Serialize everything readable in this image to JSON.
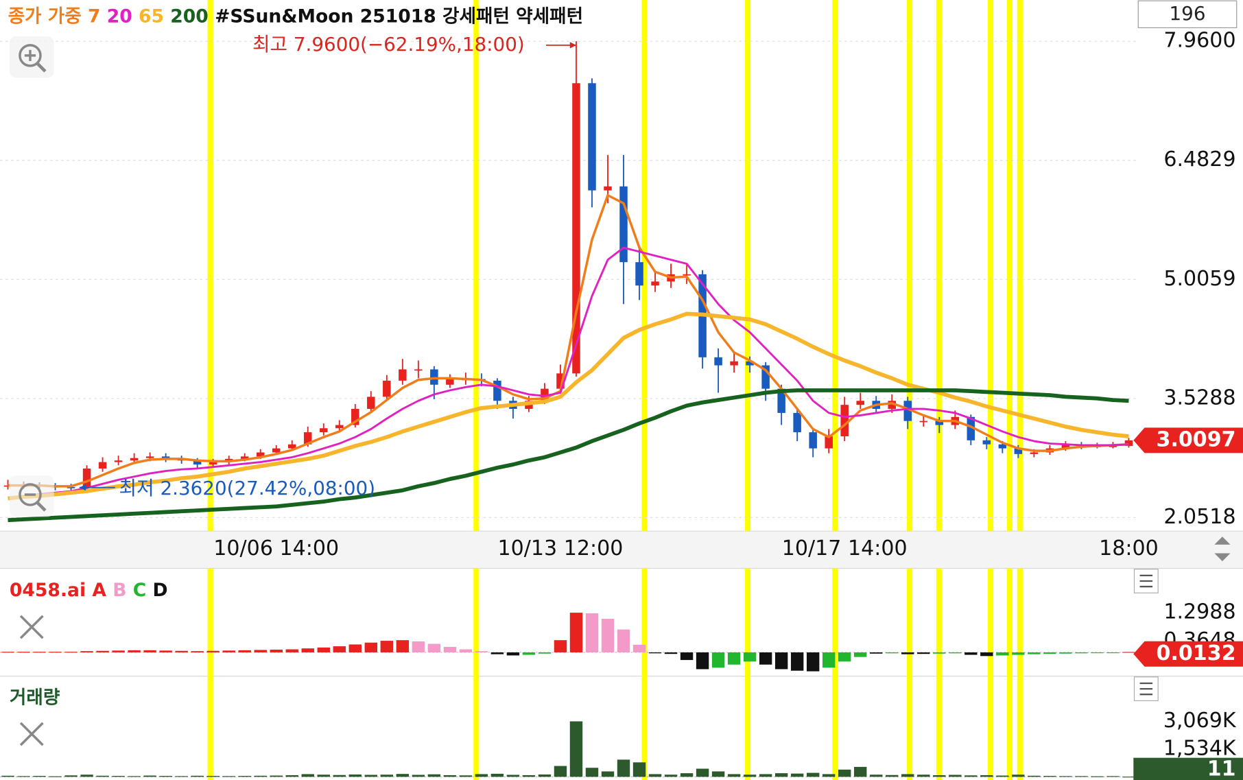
{
  "counter": 196,
  "chart_data": [
    {
      "type": "candlestick",
      "ma_label": "종가 가중",
      "title": "#SSun&Moon 251018",
      "patterns": [
        "강세패턴",
        "약세패턴"
      ],
      "high_annotation": "최고 7.9600(−62.19%,18:00)",
      "low_annotation": "최저 2.3620(27.42%,08:00)",
      "categories": [
        null,
        null,
        null,
        null,
        null,
        null,
        null,
        null,
        null,
        null,
        null,
        null,
        null,
        null,
        null,
        null,
        null,
        "10/06 14:00",
        null,
        null,
        null,
        null,
        null,
        null,
        null,
        null,
        null,
        null,
        null,
        null,
        null,
        null,
        null,
        null,
        null,
        "10/13 12:00",
        null,
        null,
        null,
        null,
        null,
        null,
        null,
        null,
        null,
        null,
        null,
        null,
        null,
        null,
        null,
        null,
        null,
        "10/17 14:00",
        null,
        null,
        null,
        null,
        null,
        null,
        null,
        null,
        null,
        null,
        null,
        null,
        null,
        null,
        null,
        null,
        null,
        "18:00"
      ],
      "open": [
        2.45,
        2.45,
        2.45,
        2.44,
        2.43,
        2.42,
        2.66,
        2.74,
        2.76,
        2.79,
        2.81,
        2.78,
        2.76,
        2.71,
        2.74,
        2.78,
        2.81,
        2.86,
        2.91,
        2.96,
        3.11,
        3.16,
        3.2,
        3.4,
        3.55,
        3.75,
        3.89,
        3.89,
        3.7,
        3.77,
        3.77,
        3.75,
        3.5,
        3.4,
        3.5,
        3.65,
        3.84,
        7.44,
        6.11,
        6.16,
        5.22,
        4.93,
        4.98,
        5.07,
        5.07,
        4.04,
        3.94,
        3.99,
        3.94,
        3.65,
        3.35,
        3.11,
        2.91,
        3.06,
        3.45,
        3.5,
        3.4,
        3.5,
        3.25,
        3.25,
        3.2,
        3.3,
        3.01,
        2.96,
        2.91,
        2.84,
        2.86,
        2.91,
        2.96,
        2.94,
        2.94,
        2.94
      ],
      "high": [
        2.52,
        2.5,
        2.49,
        2.48,
        2.47,
        2.7,
        2.8,
        2.82,
        2.85,
        2.86,
        2.85,
        2.82,
        2.79,
        2.78,
        2.82,
        2.85,
        2.9,
        2.95,
        3.01,
        3.18,
        3.22,
        3.26,
        3.46,
        3.62,
        3.82,
        4.02,
        4.0,
        3.93,
        3.83,
        3.85,
        3.84,
        3.78,
        3.55,
        3.56,
        3.72,
        3.95,
        7.96,
        7.5,
        6.55,
        6.55,
        5.4,
        5.1,
        5.2,
        5.2,
        5.12,
        4.15,
        4.1,
        4.05,
        3.98,
        3.7,
        3.4,
        3.15,
        3.15,
        3.55,
        3.6,
        3.56,
        3.58,
        3.55,
        3.32,
        3.3,
        3.38,
        3.33,
        3.05,
        3.0,
        2.95,
        2.9,
        2.95,
        3.0,
        2.99,
        2.98,
        2.99,
        3.04
      ],
      "low": [
        2.4,
        2.41,
        2.4,
        2.39,
        2.362,
        2.4,
        2.62,
        2.7,
        2.72,
        2.75,
        2.74,
        2.72,
        2.66,
        2.68,
        2.71,
        2.75,
        2.78,
        2.83,
        2.88,
        2.93,
        3.07,
        3.12,
        3.17,
        3.36,
        3.5,
        3.7,
        3.78,
        3.52,
        3.66,
        3.7,
        3.68,
        3.4,
        3.28,
        3.36,
        3.46,
        3.6,
        3.8,
        5.9,
        5.95,
        4.7,
        4.75,
        4.85,
        4.9,
        4.95,
        3.9,
        3.6,
        3.85,
        3.85,
        3.5,
        3.2,
        3.0,
        2.8,
        2.85,
        3.0,
        3.4,
        3.35,
        3.35,
        3.15,
        3.18,
        3.1,
        3.15,
        2.95,
        2.9,
        2.85,
        2.79,
        2.8,
        2.83,
        2.88,
        2.9,
        2.91,
        2.91,
        2.92
      ],
      "close": [
        2.45,
        2.45,
        2.44,
        2.43,
        2.42,
        2.66,
        2.74,
        2.76,
        2.79,
        2.81,
        2.78,
        2.76,
        2.71,
        2.74,
        2.78,
        2.81,
        2.86,
        2.91,
        2.96,
        3.11,
        3.16,
        3.2,
        3.4,
        3.55,
        3.75,
        3.89,
        3.89,
        3.7,
        3.77,
        3.77,
        3.75,
        3.5,
        3.4,
        3.5,
        3.65,
        3.84,
        7.44,
        6.11,
        6.16,
        5.22,
        4.93,
        4.98,
        5.07,
        5.07,
        4.04,
        3.94,
        3.99,
        3.94,
        3.65,
        3.35,
        3.11,
        2.91,
        3.06,
        3.45,
        3.5,
        3.4,
        3.5,
        3.25,
        3.25,
        3.2,
        3.3,
        3.01,
        2.96,
        2.91,
        2.84,
        2.86,
        2.91,
        2.96,
        2.94,
        2.94,
        2.94,
        3.0097
      ],
      "up_color": "#e8231f",
      "down_color": "#1a5bbf",
      "series": [
        {
          "name": "7",
          "color": "#f07d1a",
          "values": [
            2.45,
            2.45,
            2.45,
            2.44,
            2.44,
            2.5,
            2.58,
            2.66,
            2.73,
            2.77,
            2.78,
            2.78,
            2.76,
            2.75,
            2.75,
            2.77,
            2.8,
            2.84,
            2.89,
            2.97,
            3.05,
            3.12,
            3.24,
            3.36,
            3.51,
            3.66,
            3.76,
            3.78,
            3.78,
            3.77,
            3.76,
            3.68,
            3.58,
            3.52,
            3.53,
            3.62,
            4.6,
            5.5,
            6.05,
            5.95,
            5.4,
            5.1,
            5.03,
            5.04,
            4.75,
            4.35,
            4.1,
            4.0,
            3.88,
            3.65,
            3.4,
            3.15,
            3.05,
            3.2,
            3.38,
            3.45,
            3.47,
            3.4,
            3.32,
            3.25,
            3.25,
            3.18,
            3.08,
            2.98,
            2.91,
            2.88,
            2.88,
            2.91,
            2.93,
            2.94,
            2.95,
            2.96
          ]
        },
        {
          "name": "20",
          "color": "#e020c0",
          "values": [
            2.3,
            2.32,
            2.34,
            2.36,
            2.38,
            2.42,
            2.47,
            2.52,
            2.56,
            2.6,
            2.63,
            2.65,
            2.66,
            2.68,
            2.7,
            2.72,
            2.74,
            2.77,
            2.8,
            2.85,
            2.91,
            2.97,
            3.05,
            3.15,
            3.28,
            3.4,
            3.5,
            3.58,
            3.63,
            3.67,
            3.7,
            3.68,
            3.63,
            3.58,
            3.56,
            3.6,
            4.2,
            4.8,
            5.25,
            5.4,
            5.35,
            5.3,
            5.25,
            5.2,
            4.95,
            4.7,
            4.5,
            4.35,
            4.15,
            3.95,
            3.75,
            3.5,
            3.35,
            3.3,
            3.32,
            3.35,
            3.38,
            3.4,
            3.4,
            3.38,
            3.35,
            3.28,
            3.2,
            3.12,
            3.05,
            3.0,
            2.97,
            2.96,
            2.95,
            2.95,
            2.95,
            2.96
          ]
        },
        {
          "name": "65",
          "color": "#f7b52c",
          "values": [
            2.29,
            2.31,
            2.32,
            2.34,
            2.36,
            2.38,
            2.41,
            2.44,
            2.46,
            2.49,
            2.51,
            2.54,
            2.56,
            2.59,
            2.62,
            2.66,
            2.69,
            2.72,
            2.75,
            2.78,
            2.82,
            2.88,
            2.94,
            2.99,
            3.05,
            3.12,
            3.18,
            3.24,
            3.3,
            3.36,
            3.41,
            3.43,
            3.45,
            3.47,
            3.49,
            3.55,
            3.73,
            3.88,
            4.08,
            4.28,
            4.38,
            4.45,
            4.51,
            4.58,
            4.57,
            4.55,
            4.53,
            4.51,
            4.45,
            4.36,
            4.27,
            4.17,
            4.08,
            4.0,
            3.93,
            3.85,
            3.78,
            3.7,
            3.65,
            3.6,
            3.54,
            3.49,
            3.43,
            3.38,
            3.33,
            3.28,
            3.23,
            3.18,
            3.14,
            3.11,
            3.08,
            3.06
          ]
        },
        {
          "name": "200",
          "color": "#17621f",
          "values": [
            2.02,
            2.03,
            2.04,
            2.05,
            2.06,
            2.07,
            2.08,
            2.09,
            2.1,
            2.11,
            2.12,
            2.13,
            2.14,
            2.15,
            2.16,
            2.17,
            2.18,
            2.19,
            2.21,
            2.23,
            2.25,
            2.28,
            2.3,
            2.33,
            2.36,
            2.39,
            2.44,
            2.48,
            2.53,
            2.57,
            2.62,
            2.67,
            2.71,
            2.76,
            2.8,
            2.86,
            2.92,
            3.0,
            3.07,
            3.14,
            3.22,
            3.29,
            3.37,
            3.44,
            3.48,
            3.51,
            3.54,
            3.57,
            3.6,
            3.62,
            3.63,
            3.63,
            3.63,
            3.63,
            3.63,
            3.63,
            3.63,
            3.63,
            3.63,
            3.63,
            3.63,
            3.62,
            3.61,
            3.6,
            3.59,
            3.58,
            3.57,
            3.55,
            3.54,
            3.53,
            3.51,
            3.5
          ]
        }
      ],
      "ylim": [
        1.884,
        8.472
      ],
      "yticks": [
        2.0518,
        3.5288,
        5.0059,
        6.4829,
        {
          "value": 7.96,
          "label": "7.9600"
        }
      ],
      "grid": true
    },
    {
      "type": "bar",
      "title": "0458.ai",
      "series": [
        {
          "name": "A",
          "color": "#e8231f",
          "values": [
            0.02,
            0.02,
            0.02,
            0.02,
            0.02,
            0.04,
            0.05,
            0.06,
            0.07,
            0.07,
            0.06,
            0.05,
            0.04,
            0.05,
            0.06,
            0.07,
            0.08,
            0.09,
            0.1,
            0.13,
            0.16,
            0.2,
            0.26,
            0.32,
            0.38,
            0.4,
            null,
            null,
            null,
            null,
            null,
            null,
            null,
            null,
            null,
            0.4,
            1.3,
            null,
            null,
            null,
            null,
            null,
            null,
            null,
            null,
            null,
            null,
            null,
            null,
            null,
            null,
            null,
            null,
            null,
            null,
            null,
            null,
            null,
            null,
            null,
            null,
            null,
            null,
            null,
            null,
            null,
            null,
            null,
            null,
            null,
            null,
            0.0132
          ]
        },
        {
          "name": "B",
          "color": "#f49ac8",
          "values": [
            null,
            null,
            null,
            null,
            null,
            null,
            null,
            null,
            null,
            null,
            null,
            null,
            null,
            null,
            null,
            null,
            null,
            null,
            null,
            null,
            null,
            null,
            null,
            null,
            null,
            null,
            0.36,
            0.28,
            0.18,
            0.1,
            0.04,
            null,
            null,
            null,
            null,
            null,
            null,
            1.28,
            1.1,
            0.75,
            0.25,
            null,
            null,
            null,
            null,
            null,
            null,
            null,
            null,
            null,
            null,
            null,
            null,
            null,
            null,
            null,
            null,
            null,
            null,
            null,
            null,
            null,
            null,
            null,
            null,
            null,
            null,
            null,
            null,
            null,
            null,
            null
          ]
        },
        {
          "name": "C",
          "color": "#22b52e",
          "values": [
            null,
            null,
            null,
            null,
            null,
            null,
            null,
            null,
            null,
            null,
            null,
            null,
            null,
            null,
            null,
            null,
            null,
            null,
            null,
            null,
            null,
            null,
            null,
            null,
            null,
            null,
            null,
            null,
            null,
            null,
            null,
            null,
            null,
            -0.08,
            -0.04,
            null,
            null,
            null,
            null,
            null,
            null,
            null,
            null,
            null,
            null,
            -0.5,
            -0.4,
            -0.3,
            null,
            null,
            null,
            null,
            -0.5,
            -0.3,
            -0.15,
            null,
            -0.03,
            null,
            null,
            -0.04,
            -0.03,
            null,
            null,
            -0.1,
            -0.08,
            -0.06,
            -0.05,
            -0.04,
            -0.03,
            -0.02,
            -0.02,
            null
          ]
        },
        {
          "name": "D",
          "color": "#111111",
          "values": [
            null,
            null,
            null,
            null,
            null,
            null,
            null,
            null,
            null,
            null,
            null,
            null,
            null,
            null,
            null,
            null,
            null,
            null,
            null,
            null,
            null,
            null,
            null,
            null,
            null,
            null,
            null,
            null,
            null,
            null,
            null,
            -0.06,
            -0.1,
            null,
            null,
            null,
            null,
            null,
            null,
            null,
            null,
            -0.03,
            -0.05,
            -0.25,
            -0.55,
            null,
            null,
            null,
            -0.4,
            -0.55,
            -0.6,
            -0.62,
            null,
            null,
            null,
            -0.04,
            null,
            -0.06,
            -0.05,
            null,
            null,
            -0.08,
            -0.12,
            null,
            null,
            null,
            null,
            null,
            null,
            null,
            null,
            null
          ]
        }
      ],
      "ylim": [
        -0.701,
        2.675
      ],
      "yticks": [
        0.3648,
        1.2988
      ]
    },
    {
      "type": "bar",
      "title": "거래량",
      "color": "#2d5a2d",
      "values": [
        60,
        40,
        50,
        30,
        80,
        120,
        60,
        50,
        40,
        70,
        50,
        40,
        60,
        50,
        40,
        50,
        60,
        70,
        90,
        150,
        120,
        100,
        130,
        110,
        120,
        160,
        110,
        140,
        90,
        80,
        150,
        170,
        110,
        90,
        130,
        600,
        3069,
        500,
        300,
        950,
        800,
        150,
        120,
        200,
        450,
        300,
        150,
        120,
        150,
        200,
        180,
        220,
        150,
        400,
        550,
        120,
        100,
        150,
        120,
        90,
        110,
        80,
        90,
        70,
        120,
        60,
        50,
        40,
        40,
        30,
        40,
        11
      ],
      "ylim": [
        0,
        5261
      ],
      "yticks": [
        {
          "value": 1534,
          "label": "1,534K"
        },
        {
          "value": 3069,
          "label": "3,069K"
        }
      ]
    }
  ]
}
